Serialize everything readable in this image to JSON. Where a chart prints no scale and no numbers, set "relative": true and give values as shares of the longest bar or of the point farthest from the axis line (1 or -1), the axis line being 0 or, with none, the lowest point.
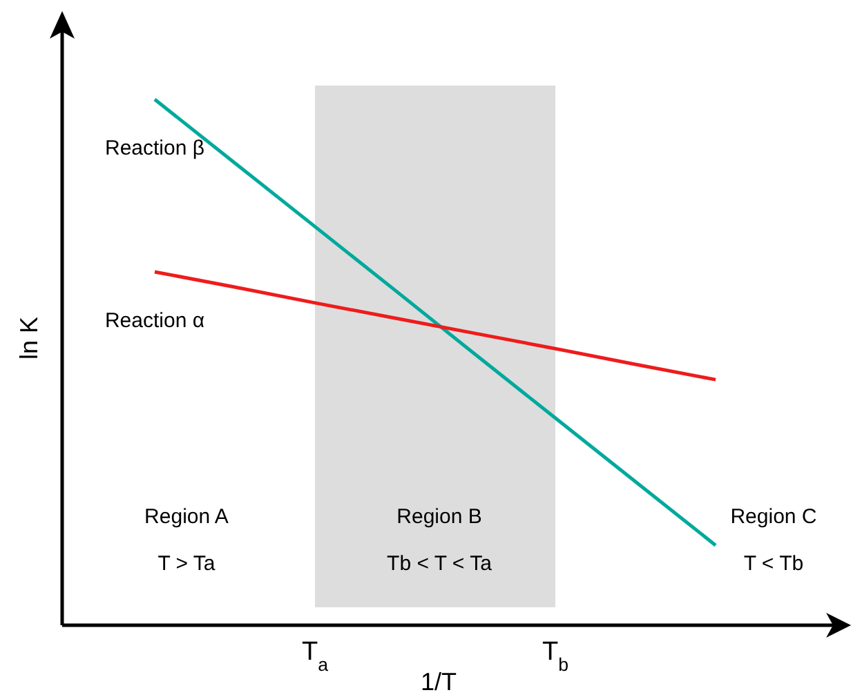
{
  "chart_data": {
    "type": "line",
    "relative": true,
    "xlabel": "1/T",
    "ylabel": "ln K",
    "categories": [
      null,
      null,
      "T$_{a}$",
      null,
      null,
      "T$_{b}$",
      null,
      null
    ],
    "legend": false,
    "marker": "none",
    "line_style": "solid",
    "series": [
      {
        "name": "Reaction β",
        "color": "#00a99d",
        "values": [
          1,
          0.879,
          0.758,
          0.637,
          0.515,
          0.394,
          0.273,
          0.152
        ]
      },
      {
        "name": "Reaction α",
        "color": "#ee1c1c",
        "values": [
          0.672,
          0.643,
          0.613,
          0.584,
          0.555,
          0.526,
          0.496,
          0.467
        ]
      }
    ],
    "bands": [
      {
        "axis": "x",
        "from": "T$_{a}$",
        "to": "T$_{b}$",
        "color": "#dddddd"
      }
    ],
    "annotations": [
      "Region A",
      "T > Ta",
      "Region B",
      "Tb < T < Ta",
      "Region C",
      "T < Tb"
    ]
  }
}
